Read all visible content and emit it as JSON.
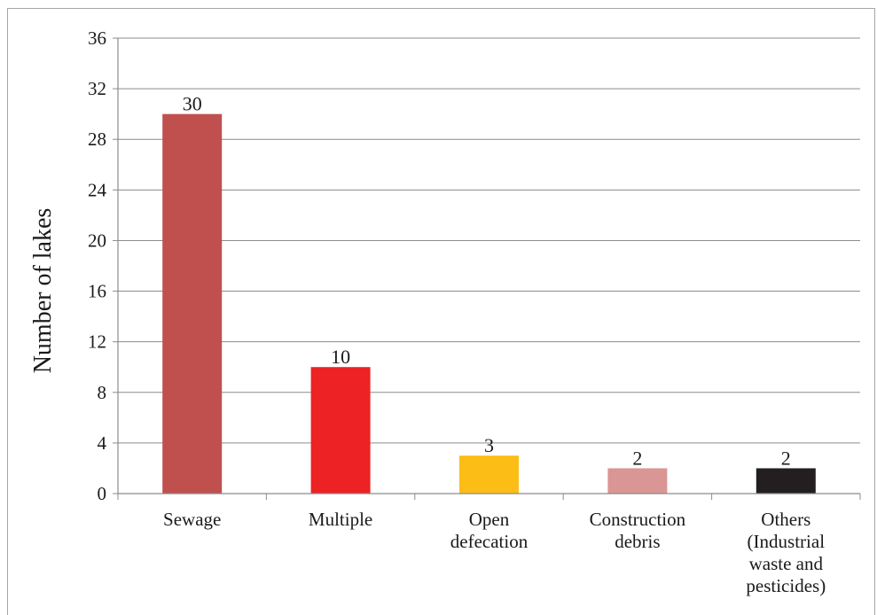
{
  "chart_data": {
    "type": "bar",
    "ylabel": "Number of lakes",
    "xlabel": "",
    "title": "",
    "ylim": [
      0,
      36
    ],
    "yticks": [
      0,
      4,
      8,
      12,
      16,
      20,
      24,
      28,
      32,
      36
    ],
    "grid": true,
    "legend": "none",
    "categories": [
      [
        "Sewage"
      ],
      [
        "Multiple"
      ],
      [
        "Open",
        "defecation"
      ],
      [
        "Construction",
        "debris"
      ],
      [
        "Others",
        "(Industrial",
        "waste and",
        "pesticides)"
      ]
    ],
    "values": [
      30,
      10,
      3,
      2,
      2
    ],
    "colors": [
      "#c0504d",
      "#ed2224",
      "#fbbd16",
      "#da9694",
      "#231f20"
    ]
  }
}
